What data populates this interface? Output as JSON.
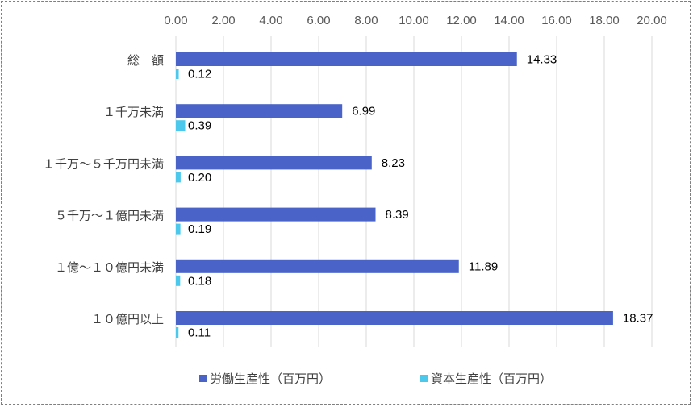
{
  "chart_data": {
    "type": "bar",
    "orientation": "horizontal",
    "categories": [
      "総　額",
      "１千万未満",
      "１千万～５千万円未満",
      "５千万～１億円未満",
      "１億～１０億円未満",
      "１０億円以上"
    ],
    "series": [
      {
        "name": "労働生産性（百万円）",
        "values": [
          14.33,
          6.99,
          8.23,
          8.39,
          11.89,
          18.37
        ],
        "color": "#4A63C8"
      },
      {
        "name": "資本生産性（百万円）",
        "values": [
          0.12,
          0.39,
          0.2,
          0.19,
          0.18,
          0.11
        ],
        "color": "#4BC8EB"
      }
    ],
    "value_labels": [
      [
        "14.33",
        "6.99",
        "8.23",
        "8.39",
        "11.89",
        "18.37"
      ],
      [
        "0.12",
        "0.39",
        "0.20",
        "0.19",
        "0.18",
        "0.11"
      ]
    ],
    "xlim": [
      0,
      20
    ],
    "x_ticks": [
      "0.00",
      "2.00",
      "4.00",
      "6.00",
      "8.00",
      "10.00",
      "12.00",
      "14.00",
      "16.00",
      "18.00",
      "20.00"
    ],
    "x_axis_position": "top",
    "grid": true,
    "legend_position": "bottom"
  }
}
